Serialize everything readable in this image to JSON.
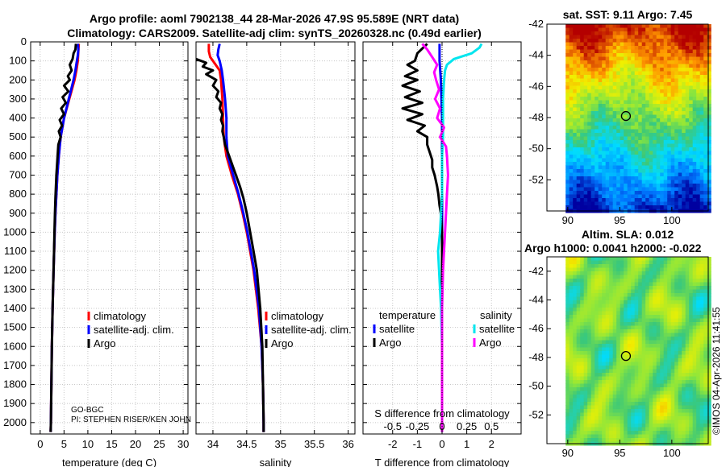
{
  "title": {
    "line1": "Argo profile: aoml 7902138_44 28-Mar-2026 47.9S 95.589E (NRT data)",
    "line2": "Climatology: CARS2009. Satellite-adj clim: synTS_20260328.nc (0.49d earlier)"
  },
  "colors": {
    "climatology": "#ff0000",
    "satellite": "#0000ff",
    "argo": "#000000",
    "sal_satellite": "#00e5ee",
    "sal_argo": "#ff00ff",
    "grid": "#c8c8c8"
  },
  "notes": {
    "program": "GO-BGC",
    "pi": "PI: STEPHEN RISER/KEN JOHN"
  },
  "chart_data": [
    {
      "id": "temperature",
      "type": "line",
      "xlabel": "temperature (deg C)",
      "ylabel": "",
      "xlim": [
        -2,
        31
      ],
      "ylim": [
        2060,
        0
      ],
      "xticks": [
        0,
        5,
        10,
        15,
        20,
        25,
        30
      ],
      "xticklabels": [
        "0",
        "5",
        "10",
        "15",
        "20",
        "25",
        "30"
      ],
      "yticks": [
        0,
        100,
        200,
        300,
        400,
        500,
        600,
        700,
        800,
        900,
        1000,
        1100,
        1200,
        1300,
        1400,
        1500,
        1600,
        1700,
        1800,
        1900,
        2000
      ],
      "yticklabels": [
        "0",
        "100",
        "200",
        "300",
        "400",
        "500",
        "600",
        "700",
        "800",
        "900",
        "1000",
        "1100",
        "1200",
        "1300",
        "1400",
        "1500",
        "1600",
        "1700",
        "1800",
        "1900",
        "2000"
      ],
      "legend": {
        "position": "lower-right",
        "entries": [
          "climatology",
          "satellite-adj. clim.",
          "Argo"
        ]
      },
      "series": [
        {
          "name": "climatology",
          "color": "#ff0000",
          "depth": [
            10,
            50,
            100,
            150,
            200,
            300,
            400,
            500,
            600,
            700,
            800,
            900,
            1000,
            1200,
            1400,
            1600,
            1800,
            2000,
            2050
          ],
          "values": [
            8.1,
            8.0,
            7.9,
            7.6,
            7.2,
            6.1,
            5.0,
            4.3,
            3.9,
            3.6,
            3.4,
            3.2,
            3.05,
            2.8,
            2.6,
            2.45,
            2.35,
            2.25,
            2.2
          ]
        },
        {
          "name": "satellite-adj. clim.",
          "color": "#0000ff",
          "depth": [
            10,
            40,
            70,
            100,
            150,
            200,
            300,
            400,
            500,
            600,
            700,
            800,
            900,
            1000,
            1200,
            1400,
            1600,
            1800,
            2000,
            2050
          ],
          "values": [
            7.9,
            8.0,
            7.9,
            7.7,
            7.4,
            7.0,
            6.0,
            5.0,
            4.3,
            3.9,
            3.6,
            3.4,
            3.2,
            3.05,
            2.8,
            2.6,
            2.45,
            2.35,
            2.25,
            2.2
          ]
        },
        {
          "name": "Argo",
          "color": "#000000",
          "depth": [
            10,
            40,
            60,
            90,
            120,
            150,
            180,
            200,
            230,
            260,
            290,
            320,
            350,
            380,
            410,
            440,
            470,
            500,
            540,
            580,
            620,
            660,
            700,
            760,
            820,
            900,
            1000,
            1100,
            1200,
            1400,
            1600,
            1800,
            2000,
            2050
          ],
          "values": [
            7.5,
            7.4,
            7.0,
            6.8,
            6.2,
            6.6,
            5.8,
            6.2,
            5.0,
            5.9,
            4.7,
            5.4,
            4.4,
            5.0,
            4.1,
            4.6,
            3.9,
            4.3,
            3.8,
            3.7,
            3.6,
            3.5,
            3.4,
            3.3,
            3.2,
            3.1,
            3.0,
            2.9,
            2.8,
            2.6,
            2.45,
            2.35,
            2.25,
            2.2
          ]
        }
      ]
    },
    {
      "id": "salinity",
      "type": "line",
      "xlabel": "salinity",
      "xlim": [
        33.75,
        36.1
      ],
      "ylim": [
        2060,
        0
      ],
      "xticks": [
        34,
        34.5,
        35,
        35.5,
        36
      ],
      "xticklabels": [
        "34",
        "34.5",
        "35",
        "35.5",
        "36"
      ],
      "legend": {
        "position": "lower-right",
        "entries": [
          "climatology",
          "satellite-adj. clim.",
          "Argo"
        ]
      },
      "series": [
        {
          "name": "climatology",
          "color": "#ff0000",
          "depth": [
            10,
            50,
            80,
            100,
            150,
            200,
            300,
            400,
            500,
            550,
            600,
            700,
            800,
            900,
            1000,
            1200,
            1400,
            1600,
            1800,
            2000,
            2050
          ],
          "values": [
            33.94,
            33.94,
            33.96,
            34.0,
            34.1,
            34.12,
            34.14,
            34.15,
            34.16,
            34.18,
            34.2,
            34.28,
            34.37,
            34.44,
            34.5,
            34.6,
            34.67,
            34.72,
            34.74,
            34.75,
            34.75
          ]
        },
        {
          "name": "satellite-adj. clim.",
          "color": "#0000ff",
          "depth": [
            10,
            40,
            70,
            100,
            150,
            200,
            300,
            400,
            500,
            600,
            700,
            800,
            900,
            1000,
            1200,
            1400,
            1600,
            1800,
            2000,
            2050
          ],
          "values": [
            34.1,
            34.08,
            34.07,
            34.1,
            34.13,
            34.15,
            34.18,
            34.2,
            34.2,
            34.22,
            34.3,
            34.38,
            34.45,
            34.51,
            34.61,
            34.68,
            34.72,
            34.74,
            34.75,
            34.75
          ]
        },
        {
          "name": "Argo",
          "color": "#000000",
          "depth": [
            90,
            110,
            130,
            150,
            170,
            200,
            230,
            260,
            290,
            320,
            350,
            380,
            410,
            440,
            470,
            500,
            540,
            580,
            620,
            660,
            700,
            760,
            820,
            900,
            1000,
            1100,
            1200,
            1400,
            1600,
            1800,
            2000,
            2050
          ],
          "values": [
            33.75,
            33.9,
            33.85,
            34.0,
            33.9,
            34.05,
            34.0,
            34.08,
            34.05,
            34.12,
            34.1,
            34.14,
            34.12,
            34.15,
            34.14,
            34.16,
            34.18,
            34.22,
            34.26,
            34.3,
            34.34,
            34.4,
            34.45,
            34.5,
            34.55,
            34.6,
            34.65,
            34.7,
            34.73,
            34.74,
            34.75,
            34.75
          ]
        }
      ]
    },
    {
      "id": "differences",
      "type": "line",
      "xlabel": "T difference from climatology",
      "xlabel_top": "S difference from climatology",
      "xlim": [
        -3.2,
        3.2
      ],
      "ylim": [
        2060,
        0
      ],
      "xticks": [
        -2,
        -1,
        0,
        1,
        2
      ],
      "xticklabels": [
        "-2",
        "-1",
        "0",
        "1",
        "2"
      ],
      "s_xticks": [
        -0.5,
        -0.25,
        0,
        0.25,
        0.5
      ],
      "s_xticklabels": [
        "-0.5",
        "-0.25",
        "0",
        "0.25",
        "0.5"
      ],
      "s_scale": 4,
      "legend_temperature": {
        "title": "temperature",
        "entries": [
          "satellite",
          "Argo"
        ]
      },
      "legend_salinity": {
        "title": "salinity",
        "entries": [
          "satellite",
          "Argo"
        ]
      },
      "series": [
        {
          "name": "T satellite",
          "color": "#0000ff",
          "depth": [
            10,
            100,
            200,
            400,
            600,
            800,
            1000,
            1200,
            1400,
            1600,
            1800,
            2000,
            2050
          ],
          "values": [
            -0.1,
            -0.1,
            -0.05,
            0,
            0,
            0,
            0,
            0,
            0,
            0,
            0,
            0,
            0
          ]
        },
        {
          "name": "T Argo",
          "color": "#000000",
          "depth": [
            10,
            60,
            100,
            120,
            150,
            180,
            200,
            230,
            260,
            290,
            320,
            350,
            380,
            410,
            440,
            470,
            500,
            540,
            580,
            620,
            660,
            700,
            760,
            800,
            860,
            900,
            1000,
            1200,
            1400,
            1600,
            1800,
            2000,
            2050
          ],
          "values": [
            -0.6,
            -1.0,
            -1.1,
            -1.4,
            -1.0,
            -1.5,
            -1.0,
            -1.6,
            -0.9,
            -1.5,
            -0.8,
            -1.6,
            -0.8,
            -1.4,
            -0.7,
            -1.0,
            -0.6,
            -0.6,
            -0.5,
            -0.4,
            -0.4,
            -0.3,
            -0.2,
            -0.15,
            -0.1,
            -0.05,
            0,
            0,
            0,
            0,
            0,
            0,
            0
          ]
        },
        {
          "name": "S satellite",
          "color": "#00e5ee",
          "depth": [
            10,
            30,
            60,
            90,
            120,
            150,
            200,
            300,
            400,
            500,
            600,
            800,
            1000,
            1100,
            1200,
            1300,
            1400,
            1600,
            1800,
            2000,
            2050
          ],
          "values": [
            0.4,
            0.38,
            0.3,
            0.12,
            0.05,
            0.03,
            0.02,
            0.01,
            0.01,
            0.01,
            0.0,
            0.0,
            -0.02,
            -0.04,
            -0.03,
            -0.02,
            -0.01,
            0.0,
            0.0,
            0.0,
            0.0
          ]
        },
        {
          "name": "S Argo",
          "color": "#ff00ff",
          "depth": [
            10,
            40,
            80,
            120,
            160,
            200,
            250,
            300,
            350,
            400,
            450,
            500,
            550,
            600,
            700,
            800,
            900,
            1000,
            1200,
            1400,
            1600,
            1800,
            2000,
            2050
          ],
          "values": [
            -0.2,
            -0.15,
            -0.1,
            -0.05,
            -0.08,
            -0.06,
            -0.03,
            -0.07,
            -0.02,
            -0.05,
            0.02,
            -0.02,
            0.04,
            0.05,
            0.06,
            0.05,
            0.04,
            0.03,
            0.01,
            0.0,
            0.0,
            0.0,
            0.0,
            0.0
          ]
        }
      ]
    },
    {
      "id": "sst_map",
      "type": "heatmap",
      "title": "sat. SST: 9.11 Argo: 7.45",
      "xlim": [
        88,
        103.5
      ],
      "ylim": [
        -54,
        -42
      ],
      "xticks": [
        90,
        95,
        100
      ],
      "xticklabels": [
        "90",
        "95",
        "100"
      ],
      "yticks": [
        -42,
        -44,
        -46,
        -48,
        -50,
        -52
      ],
      "yticklabels": [
        "-42",
        "-44",
        "-46",
        "-48",
        "-50",
        "-52"
      ],
      "marker": {
        "lon": 95.589,
        "lat": -47.9
      }
    },
    {
      "id": "sla_map",
      "type": "heatmap",
      "title": "Altim. SLA: 0.012",
      "subtitle": "Argo h1000: 0.0041 h2000: -0.022",
      "xlim": [
        88,
        103.5
      ],
      "ylim": [
        -54,
        -41
      ],
      "xticks": [
        90,
        95,
        100
      ],
      "xticklabels": [
        "90",
        "95",
        "100"
      ],
      "yticks": [
        -42,
        -44,
        -46,
        -48,
        -50,
        -52
      ],
      "yticklabels": [
        "-42",
        "-44",
        "-46",
        "-48",
        "-50",
        "-52"
      ],
      "marker": {
        "lon": 95.589,
        "lat": -47.9
      }
    }
  ],
  "watermark": "©IMOS 04-Apr-2026 11:41:55"
}
